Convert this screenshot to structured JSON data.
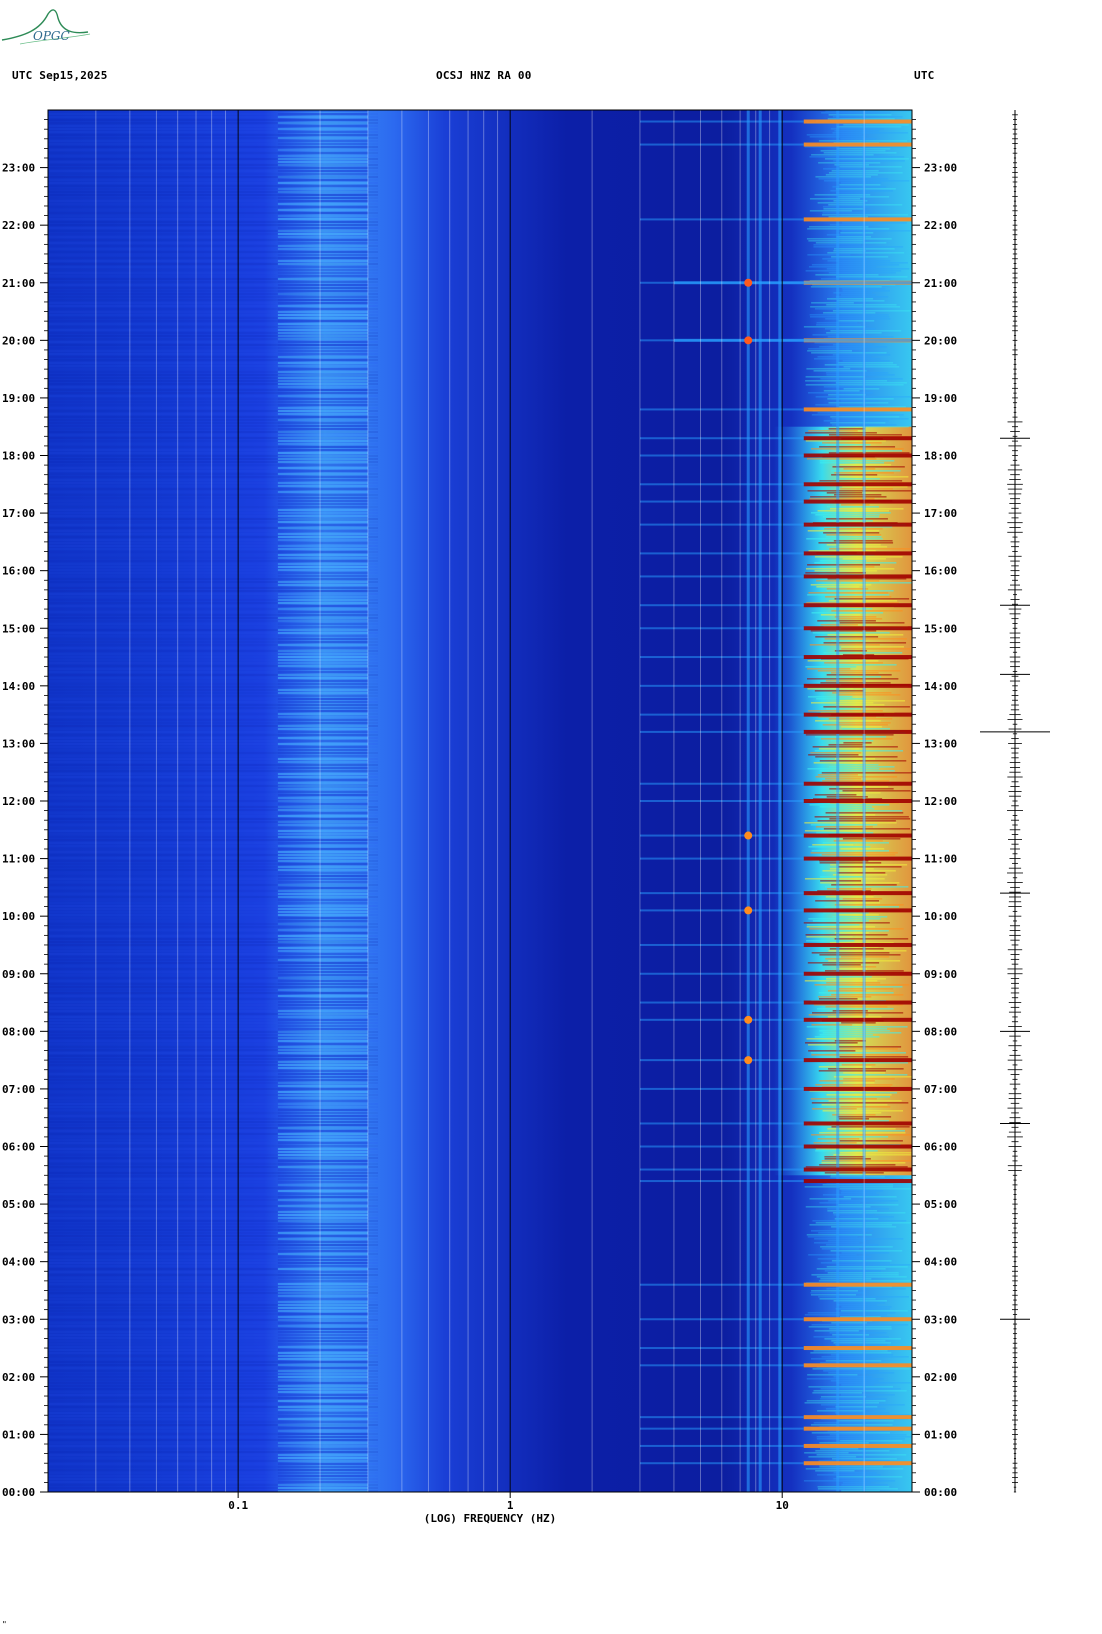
{
  "header": {
    "left_label": "UTC  Sep15,2025",
    "center_label": "OCSJ HNZ RA 00",
    "right_label": "UTC"
  },
  "logo": {
    "text": "OPGC",
    "color": "#2e8b57"
  },
  "footer": {
    "mark": "\""
  },
  "chart_data": {
    "type": "heatmap",
    "title": "OCSJ HNZ RA 00",
    "date": "Sep15,2025",
    "timezone": "UTC",
    "xlabel": "(LOG) FREQUENCY (HZ)",
    "x_scale": "log",
    "xlim_hz": [
      0.02,
      30
    ],
    "x_ticks": [
      {
        "value": 0.1,
        "label": "0.1"
      },
      {
        "value": 1,
        "label": "1"
      },
      {
        "value": 10,
        "label": "10"
      }
    ],
    "x_gridlines_hz": [
      0.03,
      0.04,
      0.05,
      0.06,
      0.07,
      0.08,
      0.09,
      0.1,
      0.2,
      0.3,
      0.4,
      0.5,
      0.6,
      0.7,
      0.8,
      0.9,
      1,
      2,
      3,
      4,
      5,
      6,
      7,
      8,
      9,
      10,
      20
    ],
    "y_ticks": [
      "00:00",
      "01:00",
      "02:00",
      "03:00",
      "04:00",
      "05:00",
      "06:00",
      "07:00",
      "08:00",
      "09:00",
      "10:00",
      "11:00",
      "12:00",
      "13:00",
      "14:00",
      "15:00",
      "16:00",
      "17:00",
      "18:00",
      "19:00",
      "20:00",
      "21:00",
      "22:00",
      "23:00"
    ],
    "ylim_hours": [
      0,
      24
    ],
    "y_direction": "00:00 at bottom, 24:00 at top",
    "colormap": [
      "#0a1ea8",
      "#1e46e6",
      "#28a0ff",
      "#3cf0f0",
      "#f0f03c",
      "#ff8c1e",
      "#a00000"
    ],
    "bands": [
      {
        "range_hz": [
          0.14,
          0.3
        ],
        "level": "light blue",
        "hours": [
          0,
          24
        ]
      },
      {
        "range_hz": [
          12,
          30
        ],
        "level": "strong (yellow-red)",
        "hours": [
          5.5,
          18.5
        ]
      },
      {
        "range_hz": [
          12,
          30
        ],
        "level": "moderate (cyan)",
        "hours": [
          0,
          24
        ]
      }
    ],
    "events_hours": [
      0.5,
      0.8,
      1.1,
      1.3,
      2.2,
      2.5,
      3.0,
      3.6,
      5.4,
      5.6,
      6.0,
      6.4,
      7.0,
      7.5,
      8.2,
      8.5,
      9.0,
      9.5,
      10.1,
      10.4,
      11.0,
      11.4,
      12.0,
      12.3,
      13.2,
      13.5,
      14.0,
      14.5,
      15.0,
      15.4,
      15.9,
      16.3,
      16.8,
      17.2,
      17.5,
      18.0,
      18.3,
      18.8,
      20.0,
      21.0,
      22.1,
      23.4,
      23.8
    ],
    "trace_right_hours_big": [
      13.2,
      6.4,
      3.0,
      8.0
    ]
  }
}
